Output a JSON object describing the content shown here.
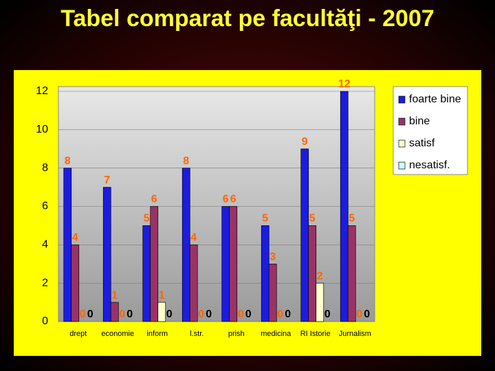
{
  "chart_data": {
    "type": "bar",
    "title": "Tabel comparat pe facultăţi - 2007",
    "categories": [
      "drept",
      "economie",
      "inform",
      "l.str.",
      "prish",
      "medicina",
      "RI Istorie",
      "Jurnalism"
    ],
    "series": [
      {
        "name": "foarte bine",
        "color": "#1c1ce0",
        "values": [
          8,
          7,
          5,
          8,
          6,
          5,
          9,
          12
        ]
      },
      {
        "name": "bine",
        "color": "#993366",
        "values": [
          4,
          1,
          6,
          4,
          6,
          3,
          5,
          5
        ]
      },
      {
        "name": "satisf",
        "color": "#ffffcc",
        "values": [
          0,
          0,
          1,
          0,
          0,
          0,
          2,
          0
        ]
      },
      {
        "name": "nesatisf.",
        "color": "#ccffff",
        "values": [
          0,
          0,
          0,
          0,
          0,
          0,
          0,
          0
        ]
      }
    ],
    "ylim": [
      0,
      12
    ],
    "yticks": [
      0,
      2,
      4,
      6,
      8,
      10,
      12
    ],
    "grid": true,
    "legend": "right"
  }
}
